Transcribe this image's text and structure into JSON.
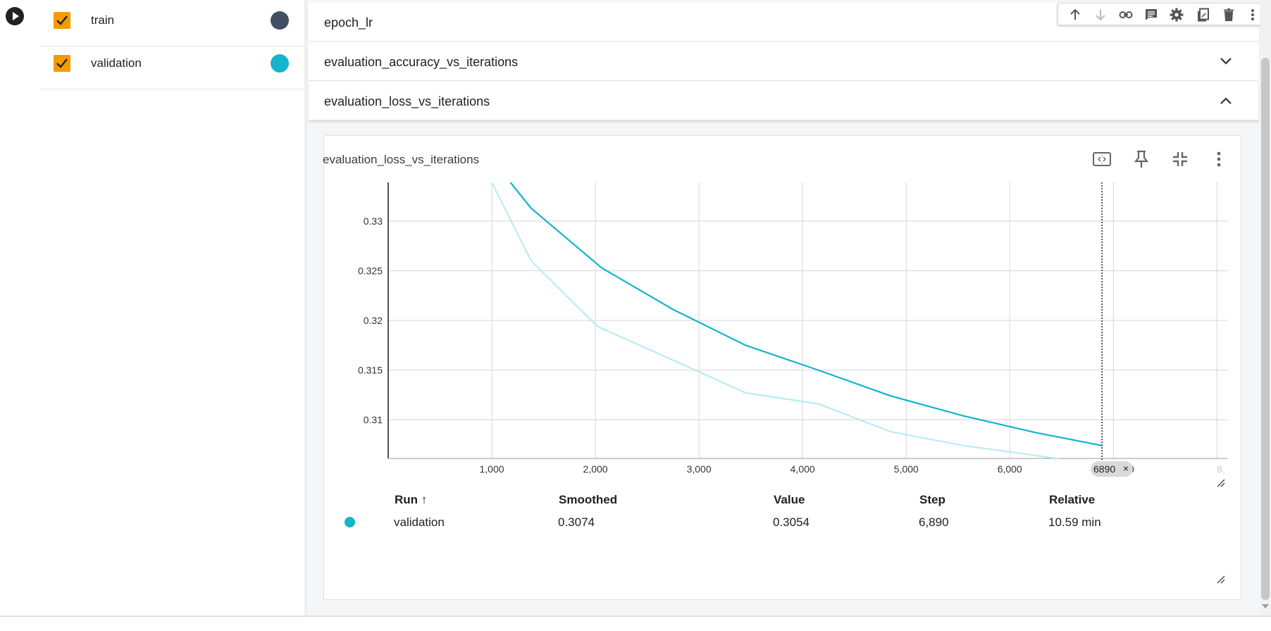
{
  "runs": [
    {
      "label": "train",
      "checked": true,
      "color": "#425066"
    },
    {
      "label": "validation",
      "checked": true,
      "color": "#12b5cb"
    }
  ],
  "groups": [
    {
      "title": "epoch_lr",
      "expanded": false
    },
    {
      "title": "evaluation_accuracy_vs_iterations",
      "expanded": false
    },
    {
      "title": "evaluation_loss_vs_iterations",
      "expanded": true
    }
  ],
  "toolbar": {
    "icons": [
      "arrow-up-icon",
      "arrow-down-icon",
      "link-icon",
      "comment-icon",
      "settings-icon",
      "copy-icon",
      "delete-icon",
      "more-vert-icon"
    ]
  },
  "card": {
    "title": "evaluation_loss_vs_iterations",
    "icons": [
      "fit-domain-icon",
      "pin-icon",
      "collapse-icon",
      "more-vert-icon"
    ],
    "step_badge": "6890",
    "step_badge_close": "×"
  },
  "chart_data": {
    "type": "line",
    "x_ticks": [
      1000,
      2000,
      3000,
      4000,
      5000,
      6000
    ],
    "x_tick_labels": [
      "1,000",
      "2,000",
      "3,000",
      "4,000",
      "5,000",
      "6,000"
    ],
    "x_tick_partial": "0",
    "x_tick_faded": "8,",
    "y_ticks": [
      0.31,
      0.315,
      0.32,
      0.325,
      0.33
    ],
    "y_tick_labels": [
      "0.31",
      "0.315",
      "0.32",
      "0.325",
      "0.33"
    ],
    "xlim": [
      0,
      8100
    ],
    "ylim": [
      0.3061,
      0.3339
    ],
    "grid": true,
    "cursor_step": 6890,
    "series": [
      {
        "name": "validation",
        "role": "raw",
        "color": "#b2ebf2",
        "x": [
          1000,
          1380,
          2020,
          2750,
          3450,
          4150,
          4850,
          5550,
          6250,
          6890
        ],
        "y": [
          0.3339,
          0.326,
          0.3194,
          0.316,
          0.3127,
          0.3116,
          0.3088,
          0.3074,
          0.3064,
          0.3054
        ]
      },
      {
        "name": "validation",
        "role": "smoothed",
        "color": "#12b5cb",
        "x": [
          1180,
          1380,
          2060,
          2750,
          3450,
          4150,
          4850,
          5550,
          6250,
          6890
        ],
        "y": [
          0.3339,
          0.3313,
          0.3253,
          0.3211,
          0.3175,
          0.315,
          0.3124,
          0.3104,
          0.3087,
          0.3074
        ]
      }
    ]
  },
  "tooltip": {
    "headers": {
      "run": "Run",
      "sort_icon": "↑",
      "smoothed": "Smoothed",
      "value": "Value",
      "step": "Step",
      "relative": "Relative"
    },
    "row": {
      "run": "validation",
      "smoothed": "0.3074",
      "value": "0.3054",
      "step": "6,890",
      "relative": "10.59 min"
    }
  }
}
